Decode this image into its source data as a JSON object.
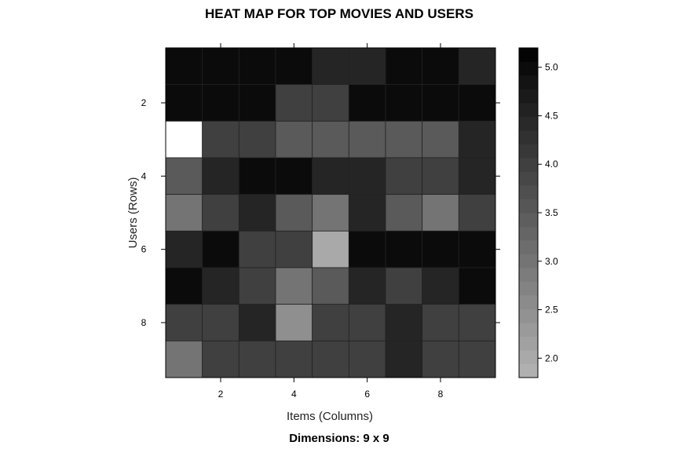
{
  "chart_data": {
    "type": "heatmap",
    "title": "HEAT MAP FOR TOP MOVIES AND USERS",
    "xlabel": "Items (Columns)",
    "ylabel": "Users (Rows)",
    "subtitle": "Dimensions: 9 x 9",
    "x_ticks": [
      2,
      4,
      6,
      8
    ],
    "y_ticks": [
      2,
      4,
      6,
      8
    ],
    "x_range": [
      0.5,
      9.5
    ],
    "y_range": [
      0.5,
      9.5
    ],
    "rows": [
      1,
      2,
      3,
      4,
      5,
      6,
      7,
      8,
      9
    ],
    "columns": [
      1,
      2,
      3,
      4,
      5,
      6,
      7,
      8,
      9
    ],
    "values": [
      [
        5,
        5,
        5,
        5,
        4.5,
        4.5,
        5,
        5,
        4.5
      ],
      [
        5,
        5,
        5,
        4,
        4,
        5,
        5,
        5,
        5
      ],
      [
        1,
        4,
        4,
        3.5,
        3.5,
        3.5,
        3.5,
        3.5,
        4.5
      ],
      [
        3.5,
        4.5,
        5,
        5,
        4.5,
        4.5,
        4,
        4,
        4.5
      ],
      [
        3,
        4,
        4.5,
        3.5,
        3,
        4.5,
        3.5,
        3,
        4
      ],
      [
        4.5,
        5,
        4,
        4,
        2,
        5,
        5,
        5,
        5
      ],
      [
        5,
        4.5,
        4,
        3,
        3.5,
        4.5,
        4,
        4.5,
        5
      ],
      [
        4,
        4,
        4.5,
        2.5,
        4,
        4,
        4.5,
        4,
        4
      ],
      [
        3,
        4,
        4,
        4,
        4,
        4,
        4.5,
        4,
        4
      ]
    ],
    "colorbar": {
      "range": [
        1.8,
        5.2
      ],
      "ticks": [
        2.0,
        2.5,
        3.0,
        3.5,
        4.0,
        4.5,
        5.0
      ],
      "tick_labels": [
        "2.0",
        "2.5",
        "3.0",
        "3.5",
        "4.0",
        "4.5",
        "5.0"
      ],
      "low_color": "#b4b4b4",
      "high_color": "#000000"
    },
    "grid": false,
    "legend": "right"
  }
}
